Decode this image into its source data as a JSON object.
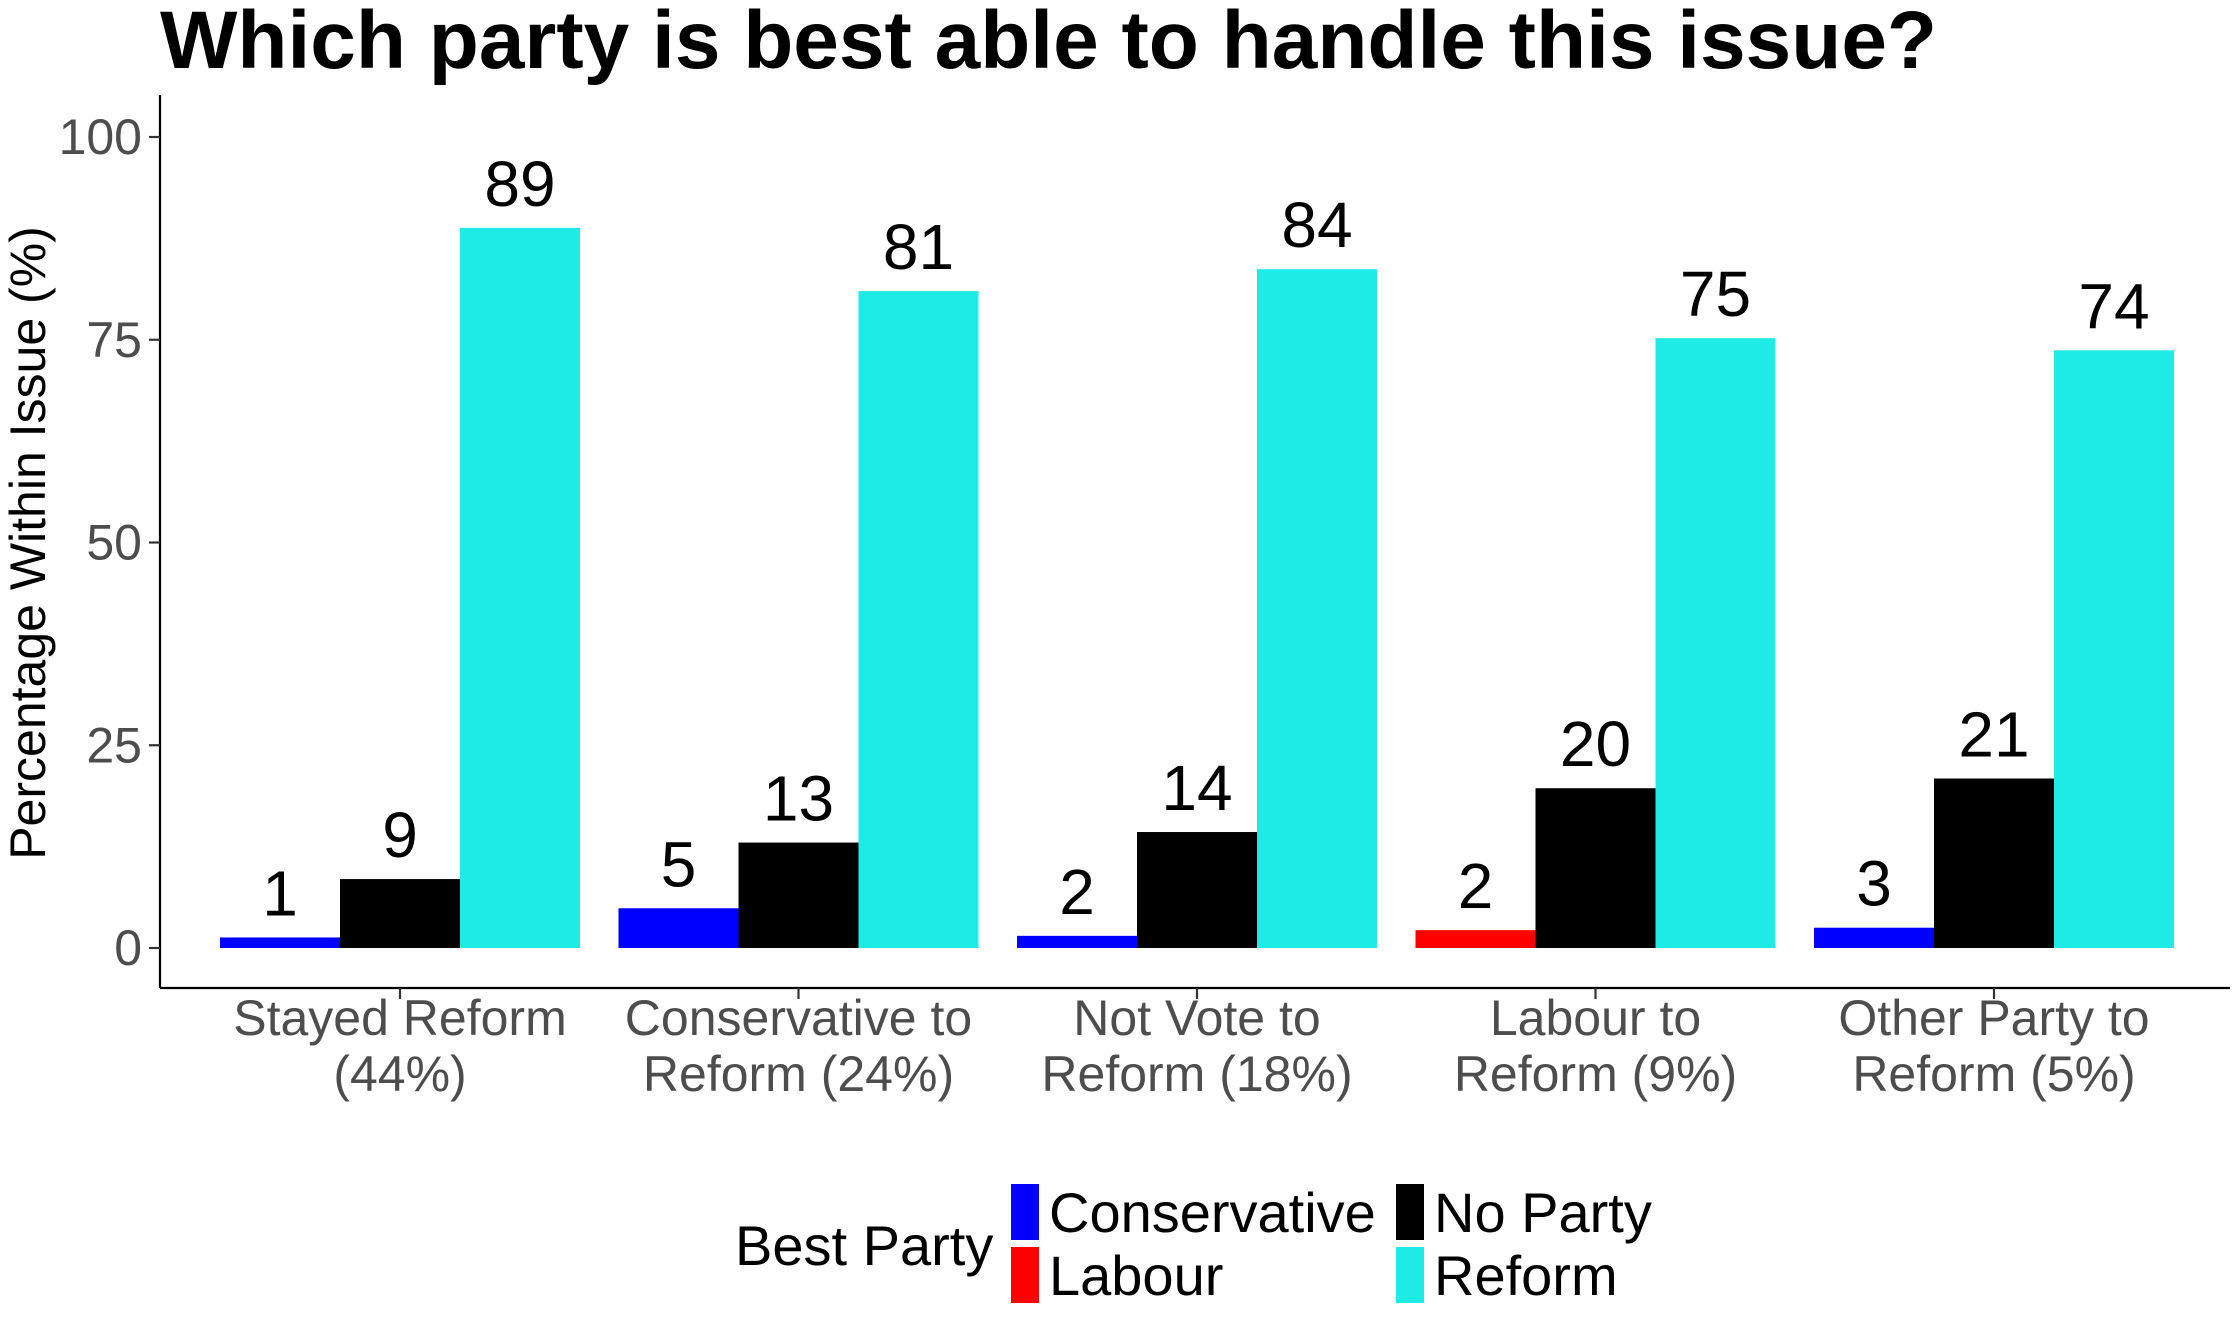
{
  "chart_data": {
    "type": "bar",
    "title": "Which party is best able to handle this issue?",
    "xlabel": "",
    "ylabel": "Percentage Within Issue (%)",
    "ylim": [
      0,
      105
    ],
    "yticks": [
      0,
      25,
      50,
      75,
      100
    ],
    "grid": false,
    "categories": [
      [
        "Stayed Reform",
        "(44%)"
      ],
      [
        "Conservative to",
        "Reform (24%)"
      ],
      [
        "Not Vote to",
        "Reform (18%)"
      ],
      [
        "Labour to",
        "Reform (9%)"
      ],
      [
        "Other Party to",
        "Reform (5%)"
      ]
    ],
    "groups": [
      [
        {
          "party": "Conservative",
          "value": 1.3,
          "label": "1"
        },
        {
          "party": "No Party",
          "value": 8.5,
          "label": "9"
        },
        {
          "party": "Reform",
          "value": 88.8,
          "label": "89"
        }
      ],
      [
        {
          "party": "Conservative",
          "value": 4.9,
          "label": "5"
        },
        {
          "party": "No Party",
          "value": 13.0,
          "label": "13"
        },
        {
          "party": "Reform",
          "value": 81.0,
          "label": "81"
        }
      ],
      [
        {
          "party": "Conservative",
          "value": 1.5,
          "label": "2"
        },
        {
          "party": "No Party",
          "value": 14.3,
          "label": "14"
        },
        {
          "party": "Reform",
          "value": 83.7,
          "label": "84"
        }
      ],
      [
        {
          "party": "Labour",
          "value": 2.2,
          "label": "2"
        },
        {
          "party": "No Party",
          "value": 19.7,
          "label": "20"
        },
        {
          "party": "Reform",
          "value": 75.2,
          "label": "75"
        }
      ],
      [
        {
          "party": "Conservative",
          "value": 2.5,
          "label": "3"
        },
        {
          "party": "No Party",
          "value": 20.9,
          "label": "21"
        },
        {
          "party": "Reform",
          "value": 73.7,
          "label": "74"
        }
      ]
    ],
    "legend": {
      "title": "Best Party",
      "position": "bottom",
      "entries": [
        {
          "name": "Conservative",
          "color": "#0000ff"
        },
        {
          "name": "Labour",
          "color": "#ff0000"
        },
        {
          "name": "No Party",
          "color": "#000000"
        },
        {
          "name": "Reform",
          "color": "#1eebe6"
        }
      ]
    }
  }
}
